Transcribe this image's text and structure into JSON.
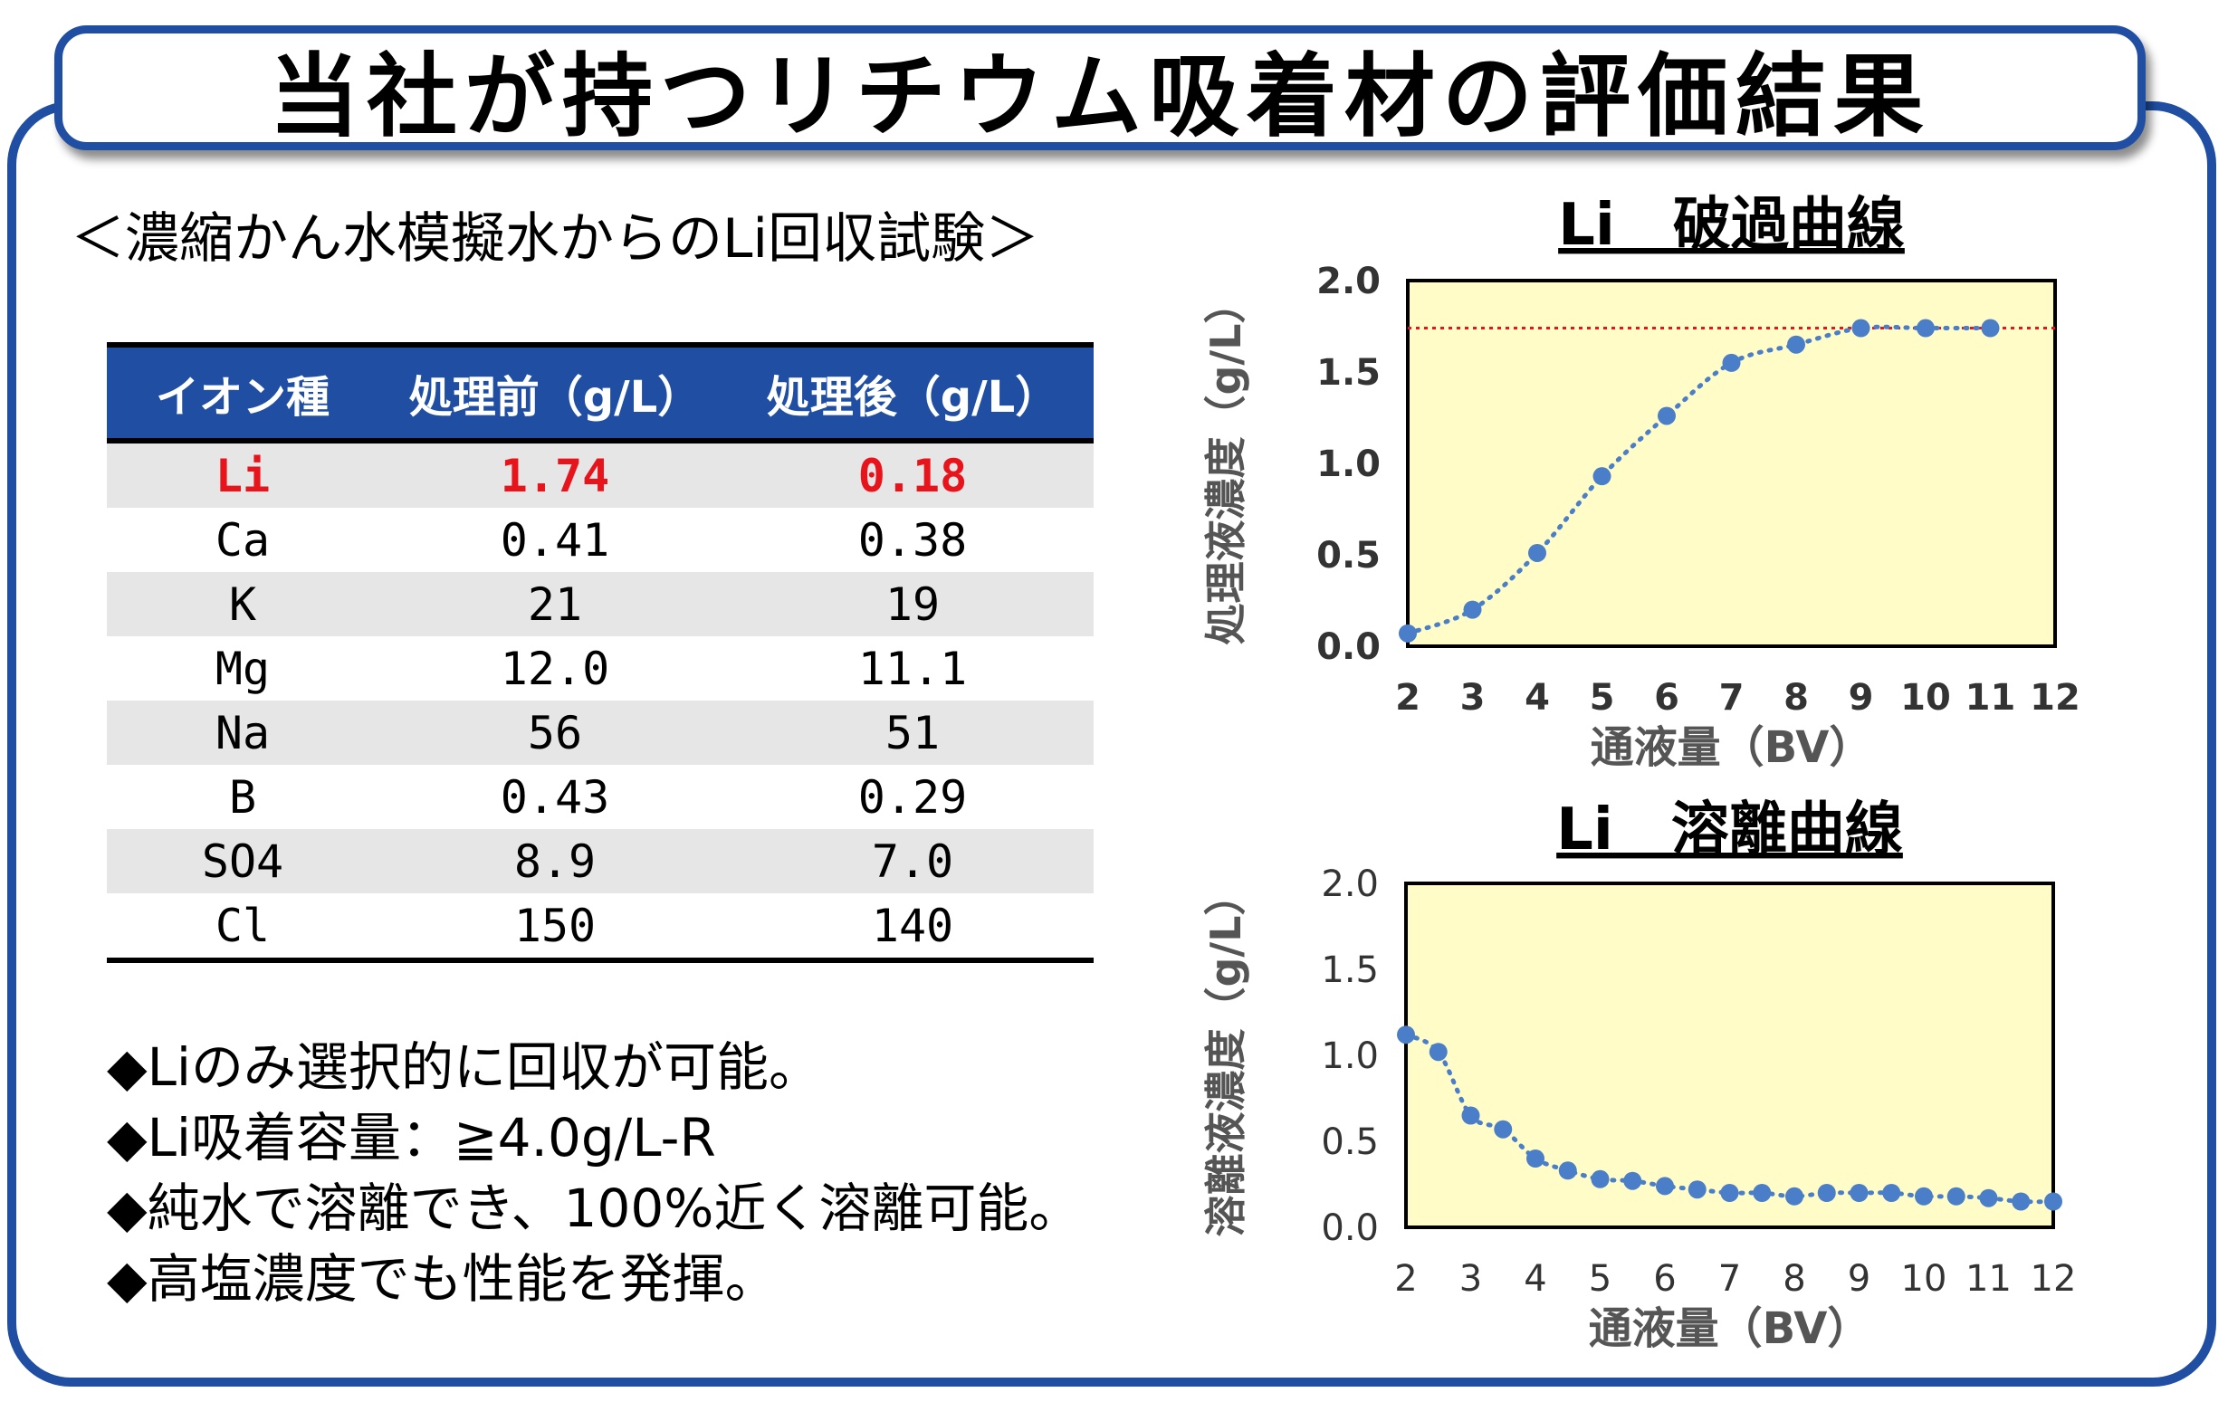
{
  "title": "当社が持つリチウム吸着材の評価結果",
  "subtitle": "＜濃縮かん水模擬水からのLi回収試験＞",
  "table": {
    "headers": [
      "イオン種",
      "処理前（g/L）",
      "処理後（g/L）"
    ],
    "rows": [
      {
        "ion": "Li",
        "before": "1.74",
        "after": "0.18"
      },
      {
        "ion": "Ca",
        "before": "0.41",
        "after": "0.38"
      },
      {
        "ion": "K",
        "before": "21",
        "after": "19"
      },
      {
        "ion": "Mg",
        "before": "12.0",
        "after": "11.1"
      },
      {
        "ion": "Na",
        "before": "56",
        "after": "51"
      },
      {
        "ion": "B",
        "before": "0.43",
        "after": "0.29"
      },
      {
        "ion": "SO4",
        "before": "8.9",
        "after": "7.0"
      },
      {
        "ion": "Cl",
        "before": "150",
        "after": "140"
      }
    ]
  },
  "bullets": [
    "◆Liのみ選択的に回収が可能。",
    "◆Li吸着容量：≧4.0g/L-R",
    "◆純水で溶離でき、100%近く溶離可能。",
    "◆高塩濃度でも性能を発揮。"
  ],
  "colors": {
    "accent": "#1f4ea3",
    "highlight": "#e8141b",
    "plot_bg": "#fffcc8",
    "marker": "#4a7ec9"
  },
  "chart_data": [
    {
      "type": "scatter",
      "title": "Li　破過曲線",
      "xlabel": "通液量（BV）",
      "ylabel": "処理液濃度（g/L）",
      "xlim": [
        2,
        12
      ],
      "ylim": [
        0,
        2.0
      ],
      "xticks": [
        "2",
        "3",
        "4",
        "5",
        "6",
        "7",
        "8",
        "9",
        "10",
        "11",
        "12"
      ],
      "yticks": [
        "0.0",
        "0.5",
        "1.0",
        "1.5",
        "2.0"
      ],
      "x": [
        2,
        3,
        4,
        5,
        6,
        7,
        8,
        9,
        10,
        11
      ],
      "y": [
        0.07,
        0.2,
        0.51,
        0.93,
        1.26,
        1.55,
        1.65,
        1.74,
        1.74,
        1.74
      ],
      "reference_line": 1.74,
      "line_style": "dotted trendline",
      "grid": false
    },
    {
      "type": "scatter",
      "title": "Li　溶離曲線",
      "xlabel": "通液量（BV）",
      "ylabel": "溶離液濃度（g/L）",
      "xlim": [
        2,
        12
      ],
      "ylim": [
        0,
        2.0
      ],
      "xticks": [
        "2",
        "3",
        "4",
        "5",
        "6",
        "7",
        "8",
        "9",
        "10",
        "11",
        "12"
      ],
      "yticks": [
        "0.0",
        "0.5",
        "1.0",
        "1.5",
        "2.0"
      ],
      "x": [
        2,
        2.5,
        3,
        3.5,
        4,
        4.5,
        5,
        5.5,
        6,
        6.5,
        7,
        7.5,
        8,
        8.5,
        9,
        9.5,
        10,
        10.5,
        11,
        11.5,
        12
      ],
      "y": [
        1.12,
        1.02,
        0.65,
        0.57,
        0.4,
        0.33,
        0.28,
        0.27,
        0.24,
        0.22,
        0.2,
        0.2,
        0.18,
        0.2,
        0.2,
        0.2,
        0.18,
        0.18,
        0.17,
        0.15,
        0.15
      ],
      "line_style": "dotted trendline",
      "grid": false
    }
  ]
}
